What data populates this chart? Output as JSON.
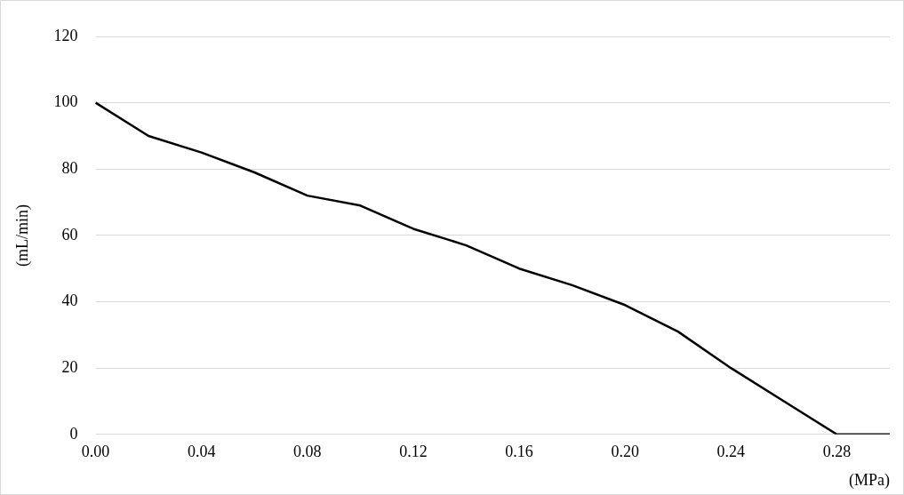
{
  "chart_data": {
    "type": "line",
    "xlabel": "(MPa)",
    "ylabel": "(mL/min)",
    "categories": [
      "0.00",
      null,
      "0.04",
      null,
      "0.08",
      null,
      "0.12",
      null,
      "0.16",
      null,
      "0.20",
      null,
      "0.24",
      null,
      "0.28",
      null
    ],
    "series": [
      {
        "color": "#000000",
        "values": [
          100,
          90,
          85,
          79,
          72,
          69,
          62,
          57,
          50,
          45,
          39,
          31,
          20,
          10,
          0,
          0
        ]
      }
    ],
    "ylim": [
      0,
      120
    ],
    "yticks": [
      0,
      20,
      40,
      60,
      80,
      100,
      120
    ],
    "grid": "y",
    "legend": false,
    "marker": "none",
    "line_style": "solid"
  }
}
